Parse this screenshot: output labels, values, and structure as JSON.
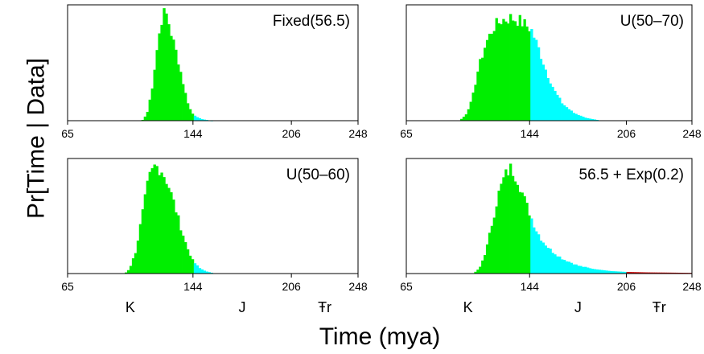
{
  "figure": {
    "ylabel": "Pr[Time | Data]",
    "xlabel": "Time (mya)"
  },
  "colors": {
    "K": "#00ee00",
    "J": "#00ffff",
    "Tr": "#cc0000",
    "frame": "#000000"
  },
  "periods": [
    {
      "id": "K",
      "label": "K",
      "center_mya": 104.5
    },
    {
      "id": "J",
      "label": "J",
      "center_mya": 175
    },
    {
      "id": "Tr",
      "label": "Ŧr",
      "center_mya": 227
    }
  ],
  "chart_data": [
    {
      "type": "histogram",
      "title": "Fixed(56.5)",
      "xlim": [
        65,
        248
      ],
      "xticks": [
        65,
        144,
        206,
        248
      ],
      "period_boundaries": [
        144,
        206
      ],
      "bins": {
        "start": 65,
        "width": 1.5
      },
      "density": [
        {
          "x": 112,
          "y": 0.002
        },
        {
          "x": 115,
          "y": 0.06
        },
        {
          "x": 118,
          "y": 0.27
        },
        {
          "x": 121,
          "y": 0.6
        },
        {
          "x": 124,
          "y": 0.88
        },
        {
          "x": 126,
          "y": 0.97
        },
        {
          "x": 128,
          "y": 0.9
        },
        {
          "x": 131,
          "y": 0.72
        },
        {
          "x": 134,
          "y": 0.57
        },
        {
          "x": 137,
          "y": 0.38
        },
        {
          "x": 140,
          "y": 0.19
        },
        {
          "x": 143,
          "y": 0.07
        },
        {
          "x": 146,
          "y": 0.035
        },
        {
          "x": 150,
          "y": 0.012
        },
        {
          "x": 156,
          "y": 0.0
        }
      ],
      "show_period_labels": false
    },
    {
      "type": "histogram",
      "title": "U(50–70)",
      "xlim": [
        65,
        248
      ],
      "xticks": [
        65,
        144,
        206,
        248
      ],
      "period_boundaries": [
        144,
        206
      ],
      "bins": {
        "start": 65,
        "width": 1.5
      },
      "density": [
        {
          "x": 99,
          "y": 0.0
        },
        {
          "x": 103,
          "y": 0.05
        },
        {
          "x": 107,
          "y": 0.18
        },
        {
          "x": 111,
          "y": 0.45
        },
        {
          "x": 116,
          "y": 0.68
        },
        {
          "x": 121,
          "y": 0.82
        },
        {
          "x": 126,
          "y": 0.88
        },
        {
          "x": 132,
          "y": 0.9
        },
        {
          "x": 137,
          "y": 0.88
        },
        {
          "x": 141,
          "y": 0.84
        },
        {
          "x": 145,
          "y": 0.8
        },
        {
          "x": 150,
          "y": 0.62
        },
        {
          "x": 155,
          "y": 0.42
        },
        {
          "x": 160,
          "y": 0.26
        },
        {
          "x": 165,
          "y": 0.15
        },
        {
          "x": 172,
          "y": 0.07
        },
        {
          "x": 180,
          "y": 0.025
        },
        {
          "x": 190,
          "y": 0.0
        }
      ],
      "show_period_labels": false
    },
    {
      "type": "histogram",
      "title": "U(50–60)",
      "xlim": [
        65,
        248
      ],
      "xticks": [
        65,
        144,
        206,
        248
      ],
      "period_boundaries": [
        144,
        206
      ],
      "bins": {
        "start": 65,
        "width": 1.5
      },
      "density": [
        {
          "x": 101,
          "y": 0.0
        },
        {
          "x": 104,
          "y": 0.04
        },
        {
          "x": 108,
          "y": 0.2
        },
        {
          "x": 112,
          "y": 0.52
        },
        {
          "x": 116,
          "y": 0.83
        },
        {
          "x": 120,
          "y": 0.95
        },
        {
          "x": 124,
          "y": 0.92
        },
        {
          "x": 128,
          "y": 0.8
        },
        {
          "x": 132,
          "y": 0.62
        },
        {
          "x": 136,
          "y": 0.42
        },
        {
          "x": 140,
          "y": 0.24
        },
        {
          "x": 144,
          "y": 0.11
        },
        {
          "x": 148,
          "y": 0.05
        },
        {
          "x": 152,
          "y": 0.02
        },
        {
          "x": 158,
          "y": 0.0
        }
      ],
      "show_period_labels": true
    },
    {
      "type": "histogram",
      "title": "56.5 + Exp(0.2)",
      "xlim": [
        65,
        248
      ],
      "xticks": [
        65,
        144,
        206,
        248
      ],
      "period_boundaries": [
        144,
        206
      ],
      "bins": {
        "start": 65,
        "width": 1.5
      },
      "density": [
        {
          "x": 108,
          "y": 0.0
        },
        {
          "x": 112,
          "y": 0.05
        },
        {
          "x": 116,
          "y": 0.2
        },
        {
          "x": 120,
          "y": 0.45
        },
        {
          "x": 124,
          "y": 0.7
        },
        {
          "x": 128,
          "y": 0.86
        },
        {
          "x": 132,
          "y": 0.93
        },
        {
          "x": 136,
          "y": 0.84
        },
        {
          "x": 140,
          "y": 0.68
        },
        {
          "x": 144,
          "y": 0.53
        },
        {
          "x": 148,
          "y": 0.39
        },
        {
          "x": 152,
          "y": 0.29
        },
        {
          "x": 158,
          "y": 0.2
        },
        {
          "x": 165,
          "y": 0.13
        },
        {
          "x": 175,
          "y": 0.07
        },
        {
          "x": 185,
          "y": 0.04
        },
        {
          "x": 196,
          "y": 0.022
        },
        {
          "x": 206,
          "y": 0.014
        },
        {
          "x": 220,
          "y": 0.01
        },
        {
          "x": 235,
          "y": 0.008
        },
        {
          "x": 248,
          "y": 0.006
        }
      ],
      "show_period_labels": true
    }
  ]
}
